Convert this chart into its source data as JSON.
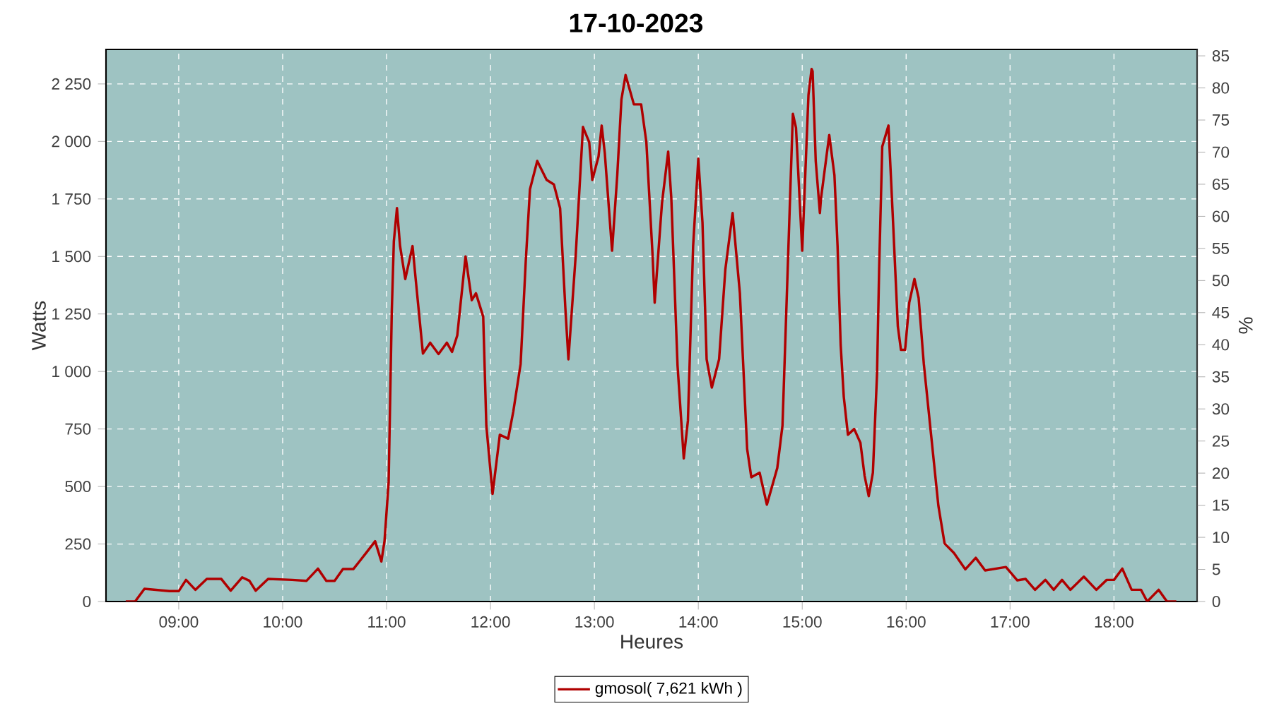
{
  "chart_data": {
    "type": "line",
    "title": "17-10-2023",
    "xlabel": "Heures",
    "ylabel": "Watts",
    "y2label": "%",
    "x": [
      8.49,
      8.58,
      8.67,
      8.91,
      9.0,
      9.07,
      9.16,
      9.27,
      9.41,
      9.5,
      9.61,
      9.68,
      9.74,
      9.86,
      10.09,
      10.23,
      10.34,
      10.42,
      10.5,
      10.58,
      10.68,
      10.81,
      10.89,
      10.95,
      10.98,
      11.02,
      11.05,
      11.07,
      11.1,
      11.13,
      11.18,
      11.25,
      11.28,
      11.35,
      11.42,
      11.5,
      11.58,
      11.63,
      11.68,
      11.76,
      11.82,
      11.86,
      11.93,
      11.96,
      12.02,
      12.09,
      12.17,
      12.22,
      12.29,
      12.34,
      12.38,
      12.45,
      12.54,
      12.61,
      12.67,
      12.72,
      12.75,
      12.82,
      12.89,
      12.95,
      12.98,
      13.04,
      13.07,
      13.1,
      13.17,
      13.22,
      13.26,
      13.3,
      13.38,
      13.45,
      13.5,
      13.56,
      13.58,
      13.65,
      13.71,
      13.74,
      13.8,
      13.86,
      13.9,
      13.95,
      14.0,
      14.04,
      14.08,
      14.13,
      14.2,
      14.26,
      14.33,
      14.4,
      14.47,
      14.51,
      14.59,
      14.66,
      14.76,
      14.81,
      14.86,
      14.91,
      14.94,
      15.0,
      15.06,
      15.09,
      15.1,
      15.13,
      15.17,
      15.18,
      15.26,
      15.31,
      15.34,
      15.37,
      15.4,
      15.44,
      15.5,
      15.56,
      15.6,
      15.64,
      15.68,
      15.72,
      15.74,
      15.77,
      15.83,
      15.87,
      15.92,
      15.95,
      15.99,
      16.03,
      16.08,
      16.12,
      16.17,
      16.24,
      16.31,
      16.37,
      16.46,
      16.57,
      16.67,
      16.76,
      16.96,
      17.07,
      17.15,
      17.24,
      17.34,
      17.42,
      17.5,
      17.58,
      17.71,
      17.83,
      17.93,
      18.0,
      18.08,
      18.17,
      18.26,
      18.32,
      18.43,
      18.51,
      18.6
    ],
    "series": [
      {
        "name": "gmosol( 7,621 kWh )",
        "color": "#b00000",
        "values": [
          0,
          0,
          55,
          45,
          45,
          94,
          51,
          98,
          98,
          47,
          105,
          90,
          47,
          98,
          94,
          90,
          143,
          90,
          90,
          141,
          141,
          215,
          262,
          174,
          262,
          519,
          1258,
          1566,
          1710,
          1545,
          1402,
          1545,
          1402,
          1078,
          1125,
          1076,
          1125,
          1085,
          1156,
          1500,
          1310,
          1340,
          1238,
          765,
          468,
          725,
          708,
          827,
          1033,
          1484,
          1792,
          1915,
          1833,
          1813,
          1710,
          1279,
          1053,
          1504,
          2063,
          1997,
          1833,
          1935,
          2069,
          1950,
          1525,
          1853,
          2182,
          2289,
          2161,
          2161,
          1997,
          1504,
          1299,
          1730,
          1956,
          1755,
          1027,
          622,
          786,
          1545,
          1925,
          1648,
          1053,
          930,
          1053,
          1443,
          1689,
          1340,
          663,
          540,
          560,
          421,
          581,
          765,
          1443,
          2120,
          2060,
          1525,
          2202,
          2315,
          2305,
          1915,
          1689,
          1750,
          2028,
          1853,
          1545,
          1115,
          889,
          725,
          750,
          690,
          547,
          458,
          560,
          991,
          1443,
          1977,
          2069,
          1689,
          1196,
          1094,
          1094,
          1299,
          1402,
          1320,
          1033,
          725,
          417,
          252,
          211,
          140,
          190,
          135,
          150,
          92,
          98,
          51,
          94,
          51,
          94,
          51,
          108,
          51,
          94,
          94,
          143,
          51,
          51,
          0,
          51,
          0,
          0
        ]
      }
    ],
    "xlim": [
      8.3,
      18.8
    ],
    "ylim": [
      0,
      2400
    ],
    "y2lim": [
      0,
      86
    ],
    "xticks": [
      {
        "value": 9,
        "label": "09:00"
      },
      {
        "value": 10,
        "label": "10:00"
      },
      {
        "value": 11,
        "label": "11:00"
      },
      {
        "value": 12,
        "label": "12:00"
      },
      {
        "value": 13,
        "label": "13:00"
      },
      {
        "value": 14,
        "label": "14:00"
      },
      {
        "value": 15,
        "label": "15:00"
      },
      {
        "value": 16,
        "label": "16:00"
      },
      {
        "value": 17,
        "label": "17:00"
      },
      {
        "value": 18,
        "label": "18:00"
      }
    ],
    "yticks": [
      0,
      250,
      500,
      750,
      {
        "value": 1000,
        "label": "1 000"
      },
      {
        "value": 1250,
        "label": "1 250"
      },
      {
        "value": 1500,
        "label": "1 500"
      },
      {
        "value": 1750,
        "label": "1 750"
      },
      {
        "value": 2000,
        "label": "2 000"
      },
      {
        "value": 2250,
        "label": "2 250"
      }
    ],
    "y2ticks": [
      0,
      5,
      10,
      15,
      20,
      25,
      30,
      35,
      40,
      45,
      50,
      55,
      60,
      65,
      70,
      75,
      80,
      85
    ],
    "grid": true,
    "legend": "bottom",
    "line_style": "solid",
    "marker": "none"
  }
}
